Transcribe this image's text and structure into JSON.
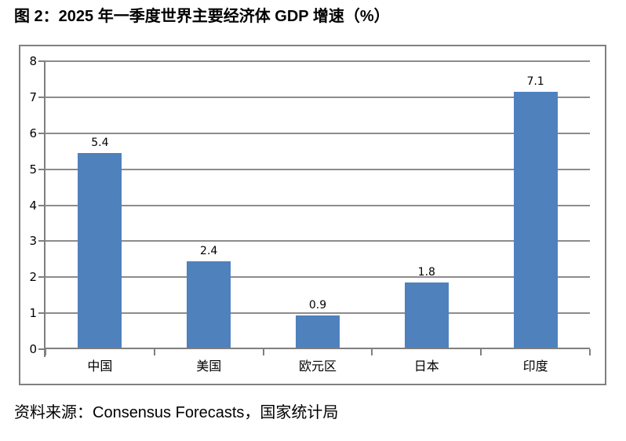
{
  "title": "图 2：2025 年一季度世界主要经济体 GDP 增速（%）",
  "source_note": "资料来源：Consensus Forecasts，国家统计局",
  "chart_data": {
    "type": "bar",
    "categories": [
      "中国",
      "美国",
      "欧元区",
      "日本",
      "印度"
    ],
    "values": [
      5.4,
      2.4,
      0.9,
      1.8,
      7.1
    ],
    "data_labels": [
      "5.4",
      "2.4",
      "0.9",
      "1.8",
      "7.1"
    ],
    "title": "",
    "xlabel": "",
    "ylabel": "",
    "ylim": [
      0,
      8
    ],
    "yticks": [
      0,
      1,
      2,
      3,
      4,
      5,
      6,
      7,
      8
    ],
    "grid": true,
    "legend": false,
    "colors": {
      "bar": "#4F81BD",
      "gridline": "#8C8C8C",
      "axis": "#7F7F7F",
      "frame_border": "#808080",
      "text": "#000000",
      "background": "#FFFFFF"
    }
  }
}
